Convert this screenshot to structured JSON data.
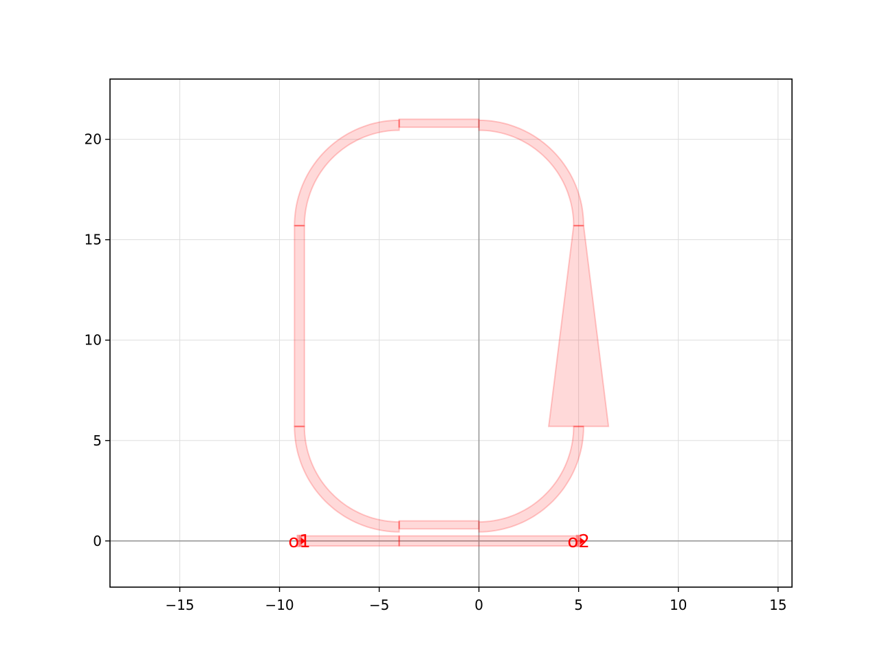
{
  "chart_data": {
    "type": "layout-diagram",
    "title": "",
    "xlabel": "",
    "ylabel": "",
    "xlim": [
      -18.5,
      15.7
    ],
    "ylim": [
      -2.3,
      23.0
    ],
    "grid": true,
    "x_ticks": [
      -15,
      -10,
      -5,
      0,
      5,
      10,
      15
    ],
    "y_ticks": [
      0,
      5,
      10,
      15,
      20
    ],
    "x_tick_labels": [
      "−15",
      "−10",
      "−5",
      "0",
      "5",
      "10",
      "15"
    ],
    "y_tick_labels": [
      "0",
      "5",
      "10",
      "15",
      "20"
    ],
    "fill_color": "#ff000026",
    "stroke_color": "#ff000033",
    "axis_line_color": "#999999",
    "polygons": [
      [
        [
          -9,
          -0.25
        ],
        [
          -4,
          -0.25
        ],
        [
          -4,
          0.25
        ],
        [
          -9,
          0.25
        ]
      ],
      [
        [
          -4,
          -0.25
        ],
        [
          5,
          -0.25
        ],
        [
          5,
          0.25
        ],
        [
          -4,
          0.25
        ]
      ],
      [
        [
          -4,
          0.6
        ],
        [
          0,
          0.6
        ],
        [
          0,
          1.0
        ],
        [
          -4,
          1.0
        ]
      ],
      [
        [
          -4,
          20.6
        ],
        [
          0,
          20.6
        ],
        [
          0,
          21.0
        ],
        [
          -4,
          21.0
        ]
      ],
      [
        [
          -9.25,
          5.7
        ],
        [
          -8.75,
          5.7
        ],
        [
          -8.75,
          15.7
        ],
        [
          -9.25,
          15.7
        ]
      ],
      [
        [
          3.5,
          5.7
        ],
        [
          6.5,
          5.7
        ],
        [
          5.25,
          15.7
        ],
        [
          4.75,
          15.7
        ]
      ]
    ],
    "arcs": [
      {
        "center": [
          -4,
          5.7
        ],
        "radius": 5,
        "from_deg": 180,
        "to_deg": 270,
        "width": 0.5
      },
      {
        "center": [
          -4,
          15.7
        ],
        "radius": 5,
        "from_deg": 90,
        "to_deg": 180,
        "width": 0.5
      },
      {
        "center": [
          0,
          15.7
        ],
        "radius": 5,
        "from_deg": 0,
        "to_deg": 90,
        "width": 0.5
      },
      {
        "center": [
          0,
          5.7
        ],
        "radius": 5,
        "from_deg": 270,
        "to_deg": 360,
        "width": 0.5
      }
    ],
    "segment_marks": [
      [
        [
          -4,
          -0.25
        ],
        [
          -4,
          0.25
        ]
      ],
      [
        [
          -4,
          0.6
        ],
        [
          -4,
          1.0
        ]
      ],
      [
        [
          -4,
          20.6
        ],
        [
          -4,
          21.0
        ]
      ],
      [
        [
          -9.25,
          5.7
        ],
        [
          -8.75,
          5.7
        ]
      ],
      [
        [
          -9.25,
          15.7
        ],
        [
          -8.75,
          15.7
        ]
      ],
      [
        [
          4.75,
          5.7
        ],
        [
          5.25,
          5.7
        ]
      ],
      [
        [
          4.75,
          15.7
        ],
        [
          5.25,
          15.7
        ]
      ]
    ],
    "ports": [
      {
        "name": "o1",
        "x": -9,
        "y": 0,
        "color": "#ff0000"
      },
      {
        "name": "o2",
        "x": 5,
        "y": 0,
        "color": "#ff0000"
      }
    ]
  }
}
